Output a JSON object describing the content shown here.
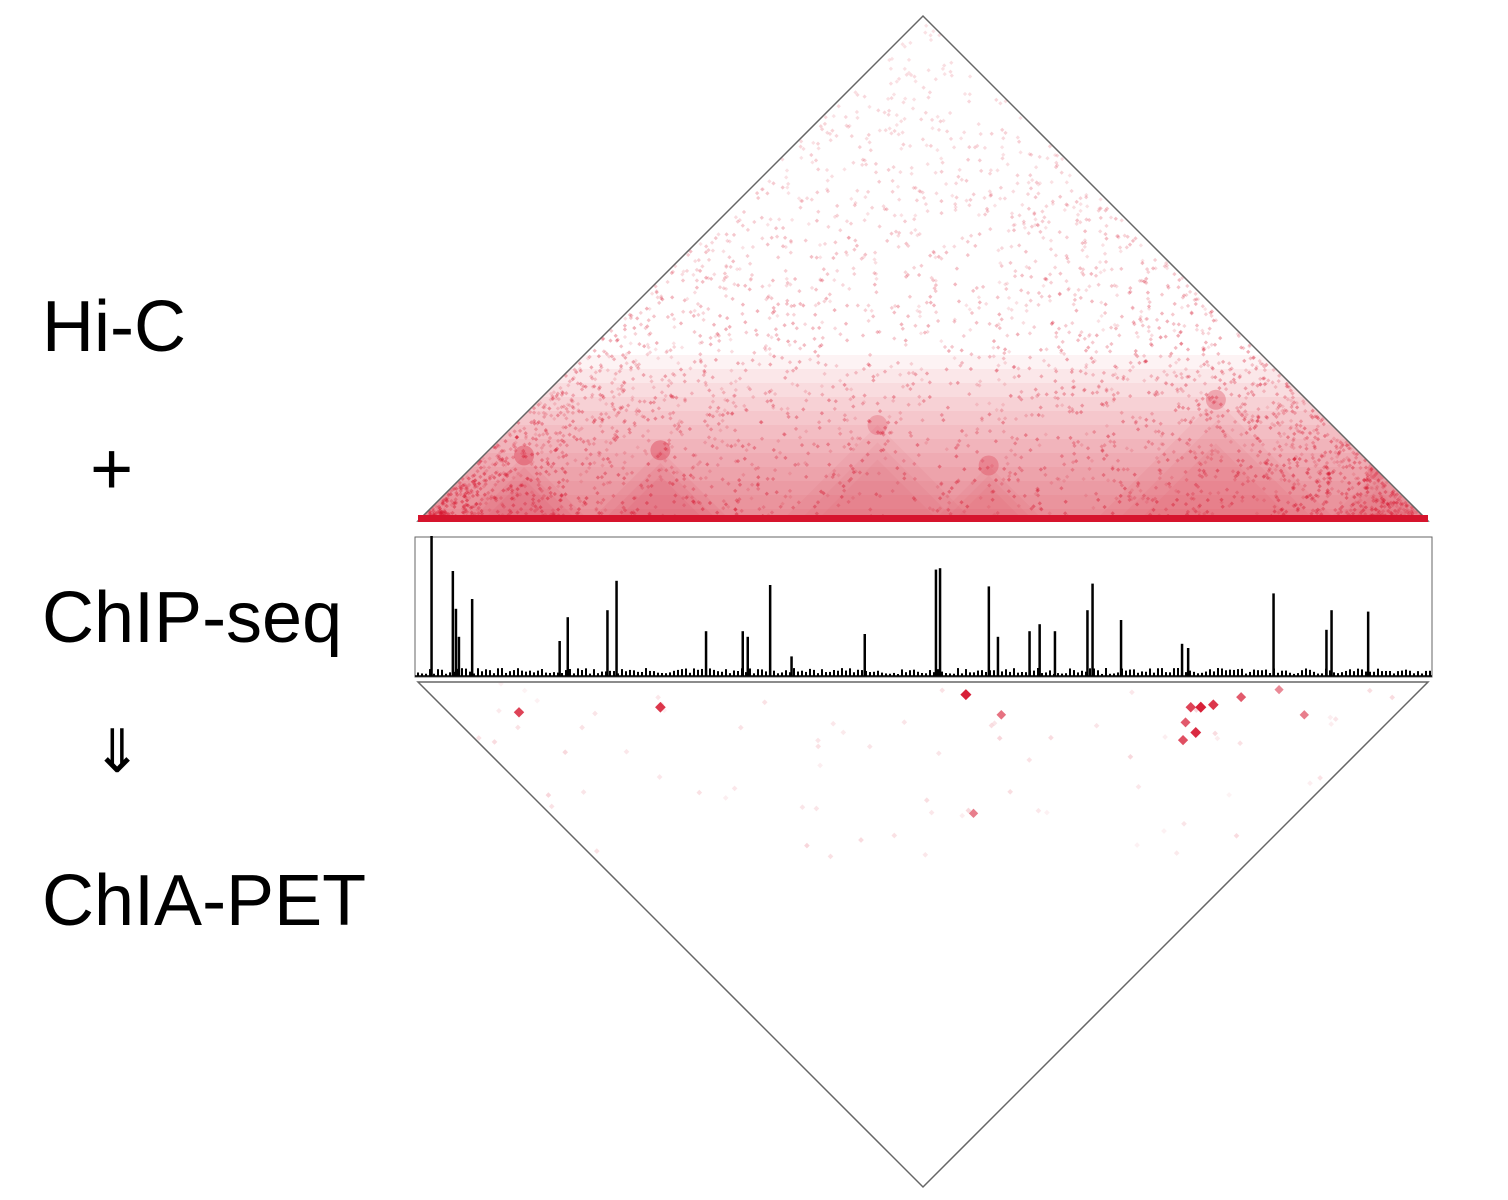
{
  "labels": {
    "hic": "Hi-C",
    "plus": "+",
    "chipseq": "ChIP-seq",
    "arrow": "⇓",
    "chiapet": "ChIA-PET"
  },
  "colors": {
    "contact": "#d6142d",
    "track": "#000000",
    "outline": "#666666"
  },
  "hic_domains": [
    {
      "start": 0.04,
      "end": 0.17,
      "strength": 0.9
    },
    {
      "start": 0.17,
      "end": 0.31,
      "strength": 0.9
    },
    {
      "start": 0.36,
      "end": 0.55,
      "strength": 0.6
    },
    {
      "start": 0.51,
      "end": 0.62,
      "strength": 0.7
    },
    {
      "start": 0.67,
      "end": 0.91,
      "strength": 0.75
    },
    {
      "start": 0.9,
      "end": 1.0,
      "strength": 0.6
    }
  ],
  "chipseq_peaks": [
    {
      "pos": 0.015,
      "value": 1.0
    },
    {
      "pos": 0.036,
      "value": 0.75
    },
    {
      "pos": 0.039,
      "value": 0.48
    },
    {
      "pos": 0.042,
      "value": 0.28
    },
    {
      "pos": 0.055,
      "value": 0.55
    },
    {
      "pos": 0.141,
      "value": 0.25
    },
    {
      "pos": 0.149,
      "value": 0.42
    },
    {
      "pos": 0.188,
      "value": 0.47
    },
    {
      "pos": 0.197,
      "value": 0.68
    },
    {
      "pos": 0.285,
      "value": 0.32
    },
    {
      "pos": 0.321,
      "value": 0.32
    },
    {
      "pos": 0.326,
      "value": 0.28
    },
    {
      "pos": 0.348,
      "value": 0.65
    },
    {
      "pos": 0.369,
      "value": 0.14
    },
    {
      "pos": 0.441,
      "value": 0.3
    },
    {
      "pos": 0.511,
      "value": 0.76
    },
    {
      "pos": 0.515,
      "value": 0.77
    },
    {
      "pos": 0.563,
      "value": 0.64
    },
    {
      "pos": 0.572,
      "value": 0.28
    },
    {
      "pos": 0.603,
      "value": 0.32
    },
    {
      "pos": 0.613,
      "value": 0.37
    },
    {
      "pos": 0.628,
      "value": 0.32
    },
    {
      "pos": 0.66,
      "value": 0.47
    },
    {
      "pos": 0.665,
      "value": 0.66
    },
    {
      "pos": 0.693,
      "value": 0.4
    },
    {
      "pos": 0.753,
      "value": 0.23
    },
    {
      "pos": 0.759,
      "value": 0.2
    },
    {
      "pos": 0.843,
      "value": 0.59
    },
    {
      "pos": 0.895,
      "value": 0.33
    },
    {
      "pos": 0.9,
      "value": 0.47
    },
    {
      "pos": 0.936,
      "value": 0.46
    }
  ],
  "chiapet_loops": [
    {
      "a": 0.07,
      "b": 0.13,
      "intensity": 0.8
    },
    {
      "a": 0.215,
      "b": 0.265,
      "intensity": 0.85
    },
    {
      "a": 0.53,
      "b": 0.555,
      "intensity": 0.95
    },
    {
      "a": 0.545,
      "b": 0.61,
      "intensity": 0.6
    },
    {
      "a": 0.42,
      "b": 0.68,
      "intensity": 0.55
    },
    {
      "a": 0.7,
      "b": 0.815,
      "intensity": 0.75
    },
    {
      "a": 0.72,
      "b": 0.8,
      "intensity": 0.7
    },
    {
      "a": 0.72,
      "b": 0.82,
      "intensity": 0.9
    },
    {
      "a": 0.74,
      "b": 0.79,
      "intensity": 0.8
    },
    {
      "a": 0.75,
      "b": 0.8,
      "intensity": 0.95
    },
    {
      "a": 0.765,
      "b": 0.81,
      "intensity": 0.85
    },
    {
      "a": 0.845,
      "b": 0.86,
      "intensity": 0.5
    },
    {
      "a": 0.845,
      "b": 0.91,
      "intensity": 0.55
    },
    {
      "a": 0.8,
      "b": 0.83,
      "intensity": 0.7
    }
  ]
}
